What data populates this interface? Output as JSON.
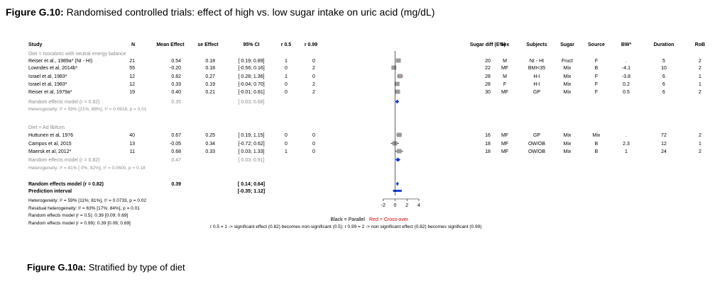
{
  "figure": {
    "label": "Figure G.10:",
    "title": "Randomised controlled trials: effect of high vs. low sugar intake on uric acid (mg/dL)",
    "sub_label": "Figure G.10a:",
    "sub_title": "Stratified by type of diet"
  },
  "headers": {
    "study": "Study",
    "n": "N",
    "mean": "Mean Effect",
    "se": "se Effect",
    "ci": "95% CI",
    "r05": "r 0.5",
    "r099": "r 0.99",
    "sugar_diff": "Sugar diff (E%)",
    "sex": "Sex",
    "subjects": "Subjects",
    "sugar": "Sugar",
    "source": "Source",
    "bw": "BWª",
    "duration": "Duration",
    "rob": "RoB"
  },
  "chart_data": {
    "type": "forest",
    "xlim": [
      -4,
      4
    ],
    "xticks": [
      -2,
      0,
      2,
      4
    ],
    "legend": {
      "black": "Black = Parallel",
      "red": "Red = Cross-over"
    },
    "groups": [
      {
        "label": "Diet = Isocaloric with neutral energy balance",
        "studies": [
          {
            "study": "Reiser et al., 1989a* (NI - HI)",
            "n": "21",
            "mean": 0.54,
            "mean_text": "0.54",
            "se": "0.18",
            "ci_text": "[ 0.19; 0.89]",
            "lo": 0.19,
            "hi": 0.89,
            "r05": "1",
            "r099": "0",
            "sugar_diff": "20",
            "sex": "M",
            "subjects": "NI - HI",
            "sugar": "Fruct",
            "source": "F",
            "bw": ".",
            "duration": "5",
            "rob": "2",
            "crossover": true
          },
          {
            "study": "Lowndes et al, 2014b*",
            "n": "55",
            "mean": -0.2,
            "mean_text": "-0.20",
            "se": "0.18",
            "ci_text": "[-0.56; 0.16]",
            "lo": -0.56,
            "hi": 0.16,
            "r05": "0",
            "r099": "2",
            "sugar_diff": "22",
            "sex": "MF",
            "subjects": "BMI<35",
            "sugar": "Mix",
            "source": "B",
            "bw": "-4.1",
            "duration": "10",
            "rob": "2",
            "crossover": false
          },
          {
            "study": "Israel et al, 1983*",
            "n": "12",
            "mean": 0.82,
            "mean_text": "0.82",
            "se": "0.27",
            "ci_text": "[ 0.28; 1.36]",
            "lo": 0.28,
            "hi": 1.36,
            "r05": "1",
            "r099": "0",
            "sugar_diff": "28",
            "sex": "M",
            "subjects": "H-I",
            "sugar": "Mix",
            "source": "F",
            "bw": "-3.8",
            "duration": "6",
            "rob": "1",
            "crossover": true
          },
          {
            "study": "Israel et al, 1983*",
            "n": "12",
            "mean": 0.33,
            "mean_text": "0.33",
            "se": "0.19",
            "ci_text": "[-0.04; 0.70]",
            "lo": -0.04,
            "hi": 0.7,
            "r05": "0",
            "r099": "2",
            "sugar_diff": "28",
            "sex": "F",
            "subjects": "H-I",
            "sugar": "Mix",
            "source": "F",
            "bw": "0.2",
            "duration": "6",
            "rob": "1",
            "crossover": true
          },
          {
            "study": "Reiser et al, 1979a*",
            "n": "19",
            "mean": 0.4,
            "mean_text": "0.40",
            "se": "0.21",
            "ci_text": "[-0.01; 0.81]",
            "lo": -0.01,
            "hi": 0.81,
            "r05": "0",
            "r099": "2",
            "sugar_diff": "30",
            "sex": "MF",
            "subjects": "GP",
            "sugar": "Mix",
            "source": "F",
            "bw": "0.5",
            "duration": "6",
            "rob": "2",
            "crossover": true
          }
        ],
        "summary": {
          "label": "Random effects model (r = 0.82)",
          "mean": 0.35,
          "mean_text": "0.35",
          "ci_text": "[ 0.03; 0.68]",
          "lo": 0.03,
          "hi": 0.68
        },
        "heterogeneity": "Heterogeneity: I² = 59% [21%; 88%], τ² = 0.0918, p = 0.01"
      },
      {
        "label": "Diet = Ad libitum",
        "studies": [
          {
            "study": "Huttunen et al, 1976",
            "n": "40",
            "mean": 0.67,
            "mean_text": "0.67",
            "se": "0.25",
            "ci_text": "[ 0.19; 1.15]",
            "lo": 0.19,
            "hi": 1.15,
            "r05": "0",
            "r099": "0",
            "sugar_diff": "16",
            "sex": "MF",
            "subjects": "GP",
            "sugar": "Mix",
            "source": "Mix",
            "bw": ".",
            "duration": "72",
            "rob": "2",
            "crossover": false
          },
          {
            "study": "Campos et al, 2015",
            "n": "13",
            "mean": -0.05,
            "mean_text": "-0.05",
            "se": "0.34",
            "ci_text": "[-0.72; 0.62]",
            "lo": -0.72,
            "hi": 0.62,
            "r05": "0",
            "r099": "0",
            "sugar_diff": "18",
            "sex": "MF",
            "subjects": "OW/OB",
            "sugar": "Mix",
            "source": "B",
            "bw": "2.3",
            "duration": "12",
            "rob": "1",
            "crossover": false
          },
          {
            "study": "Maersk et al, 2012*",
            "n": "11",
            "mean": 0.68,
            "mean_text": "0.68",
            "se": "0.33",
            "ci_text": "[ 0.03; 1.33]",
            "lo": 0.03,
            "hi": 1.33,
            "r05": "1",
            "r099": "0",
            "sugar_diff": "18",
            "sex": "MF",
            "subjects": "OW/OB",
            "sugar": "Mix",
            "source": "B",
            "bw": "1",
            "duration": "24",
            "rob": "2",
            "crossover": false
          }
        ],
        "summary": {
          "label": "Random effects model (r = 0.82)",
          "mean": 0.47,
          "mean_text": "0.47",
          "ci_text": "[ 0.03; 0.91]",
          "lo": 0.03,
          "hi": 0.91
        },
        "heterogeneity": "Heterogeneity: I² = 41% [ 0%; 82%], τ² = 0.0600, p = 0.18"
      }
    ],
    "overall": {
      "label": "Random effects model (r = 0.82)",
      "mean": 0.39,
      "mean_text": "0.39",
      "ci_text": "[ 0.14; 0.64]",
      "lo": 0.14,
      "hi": 0.64
    },
    "prediction": {
      "label": "Prediction interval",
      "ci_text": "[-0.35; 1.12]",
      "lo": -0.35,
      "hi": 1.12
    },
    "footnotes": [
      "Heterogeneity: I² = 59% [11%; 81%], τ² = 0.0733, p = 0.02",
      "Residual heterogeneity: I² = 63% [17%; 84%], p = 0.01",
      "Random effects model (r = 0.5): 0.39 [0.09; 0.69]",
      "Random effects model (r = 0.99): 0.39 [0.09; 0.69]"
    ],
    "sensitivity_note": "r 0.5 = 1 -> significant effect (0.82) becomes non-significant (0.5); r 0.99 = 2 -> non significant effect (0.82) becomes significant (0.99)"
  }
}
